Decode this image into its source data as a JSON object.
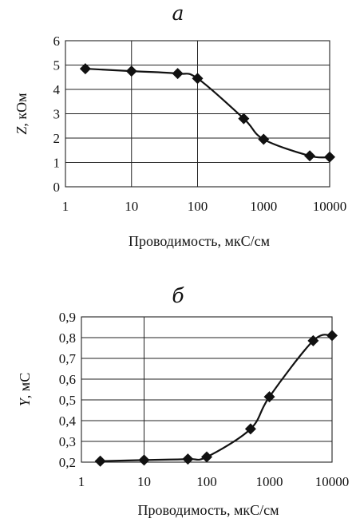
{
  "chart_data": [
    {
      "panel_letter": "а",
      "type": "line",
      "xscale": "log",
      "x": [
        2,
        10,
        50,
        100,
        500,
        1000,
        5000,
        10000
      ],
      "y": [
        4.85,
        4.75,
        4.65,
        4.45,
        2.8,
        1.95,
        1.27,
        1.22
      ],
      "ylim": [
        0,
        6
      ],
      "yticks": [
        0,
        1,
        2,
        3,
        4,
        5,
        6
      ],
      "ytick_labels": [
        "0",
        "1",
        "2",
        "3",
        "4",
        "5",
        "6"
      ],
      "xlim": [
        1,
        10000
      ],
      "xticks": [
        1,
        10,
        100,
        1000,
        10000
      ],
      "xtick_labels": [
        "1",
        "10",
        "100",
        "1000",
        "10000"
      ],
      "ylabel_italic": "Z",
      "ylabel_rest": ", кОм",
      "xlabel": "Проводимость, мкС/см",
      "grid": "horizontal + vertical at 10 and 100",
      "marker": "diamond"
    },
    {
      "panel_letter": "б",
      "type": "line",
      "xscale": "log",
      "x": [
        2,
        10,
        50,
        100,
        500,
        1000,
        5000,
        10000
      ],
      "y": [
        0.205,
        0.21,
        0.215,
        0.225,
        0.36,
        0.515,
        0.785,
        0.81
      ],
      "ylim": [
        0.2,
        0.9
      ],
      "yticks": [
        0.2,
        0.3,
        0.4,
        0.5,
        0.6,
        0.7,
        0.8,
        0.9
      ],
      "ytick_labels": [
        "0,2",
        "0,3",
        "0,4",
        "0,5",
        "0,6",
        "0,7",
        "0,8",
        "0,9"
      ],
      "xlim": [
        1,
        10000
      ],
      "xticks": [
        1,
        10,
        100,
        1000,
        10000
      ],
      "xtick_labels": [
        "1",
        "10",
        "100",
        "1000",
        "10000"
      ],
      "ylabel_italic": "Y",
      "ylabel_rest": ",  мС",
      "xlabel": "Проводимость, мкС/см",
      "grid": "horizontal + vertical at 10",
      "marker": "diamond"
    }
  ]
}
